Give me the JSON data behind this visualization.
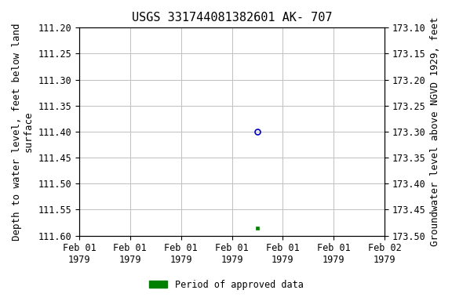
{
  "title": "USGS 331744081382601 AK- 707",
  "ylabel_left": "Depth to water level, feet below land\nsurface",
  "ylabel_right": "Groundwater level above NGVD 1929, feet",
  "ylim_left": [
    111.2,
    111.6
  ],
  "ylim_right": [
    173.1,
    173.5
  ],
  "yticks_left": [
    111.2,
    111.25,
    111.3,
    111.35,
    111.4,
    111.45,
    111.5,
    111.55,
    111.6
  ],
  "yticks_right": [
    173.5,
    173.45,
    173.4,
    173.35,
    173.3,
    173.25,
    173.2,
    173.15,
    173.1
  ],
  "point1_x_num": 3.5,
  "point1_y": 111.4,
  "point1_color": "#0000cc",
  "point2_x_num": 3.5,
  "point2_y": 111.585,
  "point2_color": "#008000",
  "x_num_min": 0.0,
  "x_num_max": 6.0,
  "xtick_positions": [
    0,
    1,
    2,
    3,
    4,
    5,
    6
  ],
  "xtick_labels": [
    "Feb 01\n1979",
    "Feb 01\n1979",
    "Feb 01\n1979",
    "Feb 01\n1979",
    "Feb 01\n1979",
    "Feb 01\n1979",
    "Feb 02\n1979"
  ],
  "grid_color": "#c0c0c0",
  "background_color": "#ffffff",
  "legend_label": "Period of approved data",
  "legend_color": "#008000",
  "title_fontsize": 11,
  "label_fontsize": 9,
  "tick_fontsize": 8.5
}
